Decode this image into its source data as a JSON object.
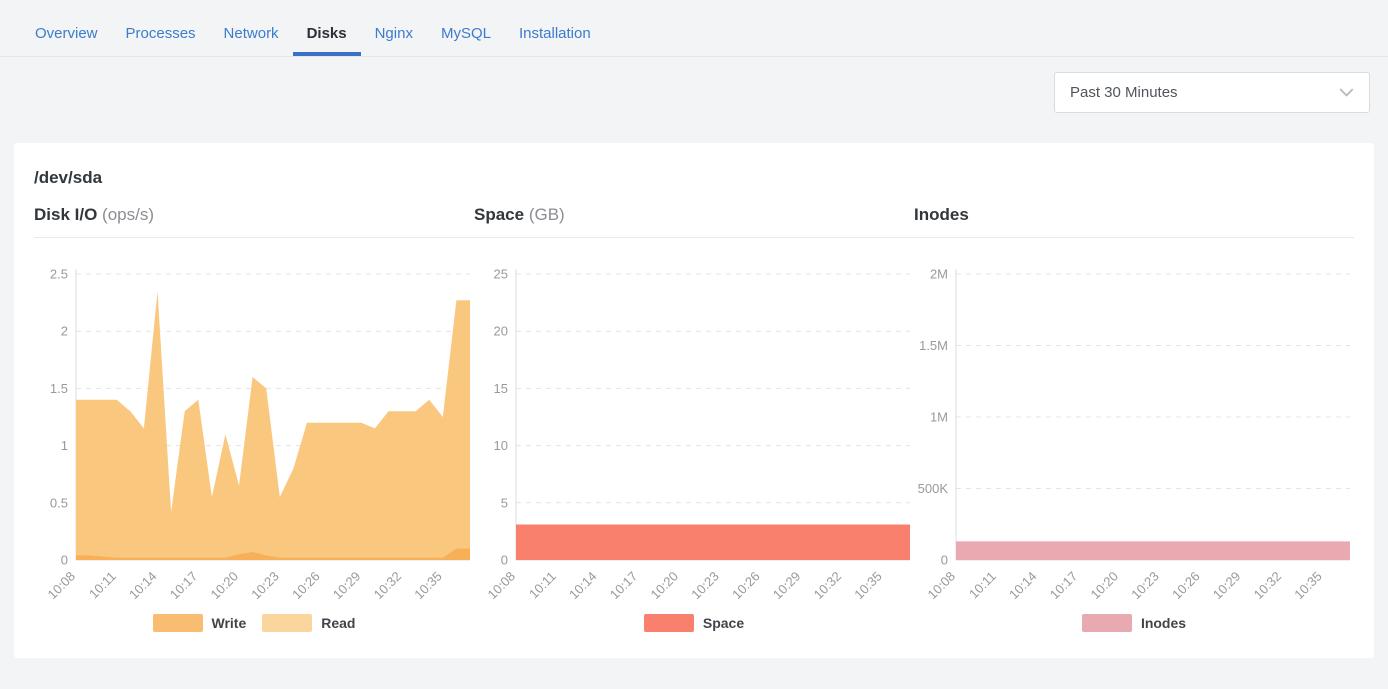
{
  "tabs": {
    "items": [
      {
        "label": "Overview",
        "active": false
      },
      {
        "label": "Processes",
        "active": false
      },
      {
        "label": "Network",
        "active": false
      },
      {
        "label": "Disks",
        "active": true
      },
      {
        "label": "Nginx",
        "active": false
      },
      {
        "label": "MySQL",
        "active": false
      },
      {
        "label": "Installation",
        "active": false
      }
    ],
    "active_underline_color": "#3A71C6",
    "link_color": "#3D7CCC"
  },
  "toolbar": {
    "time_range": "Past 30 Minutes",
    "chevron_icon": "chevron-down"
  },
  "card": {
    "title": "/dev/sda"
  },
  "chart_data": [
    {
      "type": "area",
      "title": "Disk I/O",
      "unit": "(ops/s)",
      "legend_position": "bottom",
      "grid": "dashed-horizontal",
      "x_tick_labels": [
        "10:08",
        "10:11",
        "10:14",
        "10:17",
        "10:20",
        "10:23",
        "10:26",
        "10:29",
        "10:32",
        "10:35"
      ],
      "x_tick_every": 3,
      "ylim": [
        0,
        2.5
      ],
      "ytick_values": [
        0,
        0.5,
        1,
        1.5,
        2,
        2.5
      ],
      "ytick_labels": [
        "0",
        "0.5",
        "1",
        "1.5",
        "2",
        "2.5"
      ],
      "series": [
        {
          "name": "Write",
          "color": "#F7B058",
          "legend_color": "#F9BD72",
          "values": [
            0.04,
            0.04,
            0.03,
            0.02,
            0.02,
            0.02,
            0.02,
            0.02,
            0.02,
            0.02,
            0.02,
            0.02,
            0.05,
            0.07,
            0.04,
            0.02,
            0.02,
            0.02,
            0.02,
            0.02,
            0.02,
            0.02,
            0.02,
            0.02,
            0.02,
            0.02,
            0.02,
            0.02,
            0.1,
            0.1
          ]
        },
        {
          "name": "Read",
          "color": "#FAC77E",
          "legend_color": "#FBD59E",
          "values": [
            1.4,
            1.4,
            1.4,
            1.4,
            1.3,
            1.15,
            2.35,
            0.42,
            1.3,
            1.4,
            0.55,
            1.1,
            0.65,
            1.6,
            1.5,
            0.55,
            0.8,
            1.2,
            1.2,
            1.2,
            1.2,
            1.2,
            1.15,
            1.3,
            1.3,
            1.3,
            1.4,
            1.25,
            2.27,
            2.27
          ]
        }
      ]
    },
    {
      "type": "area",
      "title": "Space",
      "unit": "(GB)",
      "legend_position": "bottom",
      "grid": "dashed-horizontal",
      "x_tick_labels": [
        "10:08",
        "10:11",
        "10:14",
        "10:17",
        "10:20",
        "10:23",
        "10:26",
        "10:29",
        "10:32",
        "10:35"
      ],
      "x_tick_every": 3,
      "ylim": [
        0,
        25
      ],
      "ytick_values": [
        0,
        5,
        10,
        15,
        20,
        25
      ],
      "ytick_labels": [
        "0",
        "5",
        "10",
        "15",
        "20",
        "25"
      ],
      "series": [
        {
          "name": "Space",
          "color": "#F8806C",
          "legend_color": "#F8806C",
          "values": [
            3.1,
            3.1,
            3.1,
            3.1,
            3.1,
            3.1,
            3.1,
            3.1,
            3.1,
            3.1,
            3.1,
            3.1,
            3.1,
            3.1,
            3.1,
            3.1,
            3.1,
            3.1,
            3.1,
            3.1,
            3.1,
            3.1,
            3.1,
            3.1,
            3.1,
            3.1,
            3.1,
            3.1,
            3.1,
            3.1
          ]
        }
      ]
    },
    {
      "type": "area",
      "title": "Inodes",
      "unit": "",
      "legend_position": "bottom",
      "grid": "dashed-horizontal",
      "x_tick_labels": [
        "10:08",
        "10:11",
        "10:14",
        "10:17",
        "10:20",
        "10:23",
        "10:26",
        "10:29",
        "10:32",
        "10:35"
      ],
      "x_tick_every": 3,
      "ylim": [
        0,
        2000000
      ],
      "ytick_values": [
        0,
        500000,
        1000000,
        1500000,
        2000000
      ],
      "ytick_labels": [
        "0",
        "500K",
        "1M",
        "1.5M",
        "2M"
      ],
      "series": [
        {
          "name": "Inodes",
          "color": "#E9A9B1",
          "legend_color": "#E9A9B1",
          "values": [
            130000,
            130000,
            130000,
            130000,
            130000,
            130000,
            130000,
            130000,
            130000,
            130000,
            130000,
            130000,
            130000,
            130000,
            130000,
            130000,
            130000,
            130000,
            130000,
            130000,
            130000,
            130000,
            130000,
            130000,
            130000,
            130000,
            130000,
            130000,
            130000,
            130000
          ]
        }
      ]
    }
  ]
}
